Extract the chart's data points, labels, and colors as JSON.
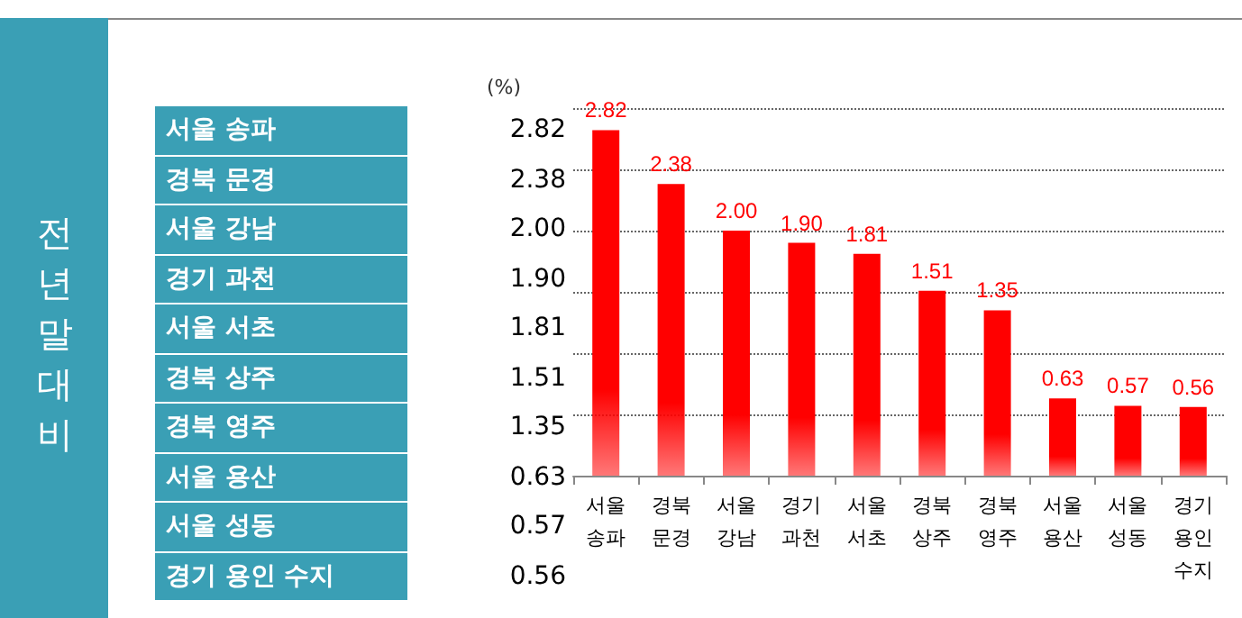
{
  "chart_data": {
    "type": "bar",
    "annotations": [
      "전년말대비",
      "(%)"
    ],
    "categories": [
      "서울 송파",
      "경북 문경",
      "서울 강남",
      "경기 과천",
      "서울 서초",
      "경북 상주",
      "경북 영주",
      "서울 용산",
      "서울 성동",
      "경기 용인 수지"
    ],
    "values": [
      2.82,
      2.38,
      2.0,
      1.9,
      1.81,
      1.51,
      1.35,
      0.63,
      0.57,
      0.56
    ],
    "value_labels": [
      "2.82",
      "2.38",
      "2.00",
      "1.90",
      "1.81",
      "1.51",
      "1.35",
      "0.63",
      "0.57",
      "0.56"
    ],
    "color": "#ff0000",
    "ylim": [
      0,
      3
    ],
    "yticks": [
      {
        "value": 0,
        "label": null
      },
      {
        "value": 0.5,
        "label": null
      },
      {
        "value": 1,
        "label": null
      },
      {
        "value": 1.5,
        "label": null
      },
      {
        "value": 2,
        "label": null
      },
      {
        "value": 2.5,
        "label": null
      },
      {
        "value": 3,
        "label": null
      }
    ],
    "grid": "y",
    "tick_labels": "x"
  }
}
